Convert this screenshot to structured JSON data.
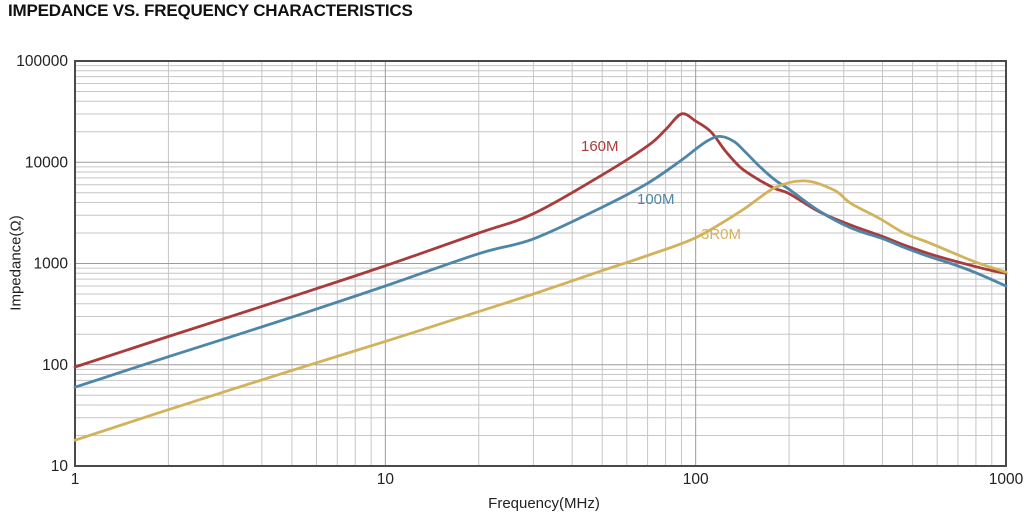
{
  "title": "IMPEDANCE VS. FREQUENCY CHARACTERISTICS",
  "chart_data": {
    "type": "line",
    "title": "IMPEDANCE VS. FREQUENCY CHARACTERISTICS",
    "xlabel": "Frequency(MHz)",
    "ylabel": "Impedance(Ω)",
    "x_scale": "log",
    "y_scale": "log",
    "xlim": [
      1,
      1000
    ],
    "ylim": [
      10,
      100000
    ],
    "grid": "log major and minor gridlines, on",
    "legend_position": "inline curve labels",
    "x_ticks": [
      {
        "value": 1,
        "label": "1"
      },
      {
        "value": 10,
        "label": "10"
      },
      {
        "value": 100,
        "label": "100"
      },
      {
        "value": 1000,
        "label": "1000"
      }
    ],
    "y_ticks": [
      {
        "value": 100000,
        "label": "100000"
      },
      {
        "value": 10000,
        "label": "10000"
      },
      {
        "value": 1000,
        "label": "1000"
      },
      {
        "value": 100,
        "label": "100"
      },
      {
        "value": 10,
        "label": "10"
      }
    ],
    "series": [
      {
        "name": "160M",
        "color": "#A83C3C",
        "label": {
          "text": "160M",
          "x": 581,
          "y": 138
        },
        "peak": {
          "frequency_mhz": 90,
          "impedance_ohm": 30000
        },
        "points": [
          [
            1,
            95
          ],
          [
            2,
            190
          ],
          [
            5,
            470
          ],
          [
            10,
            950
          ],
          [
            20,
            2000
          ],
          [
            30,
            3100
          ],
          [
            50,
            7500
          ],
          [
            70,
            14500
          ],
          [
            80,
            21000
          ],
          [
            90,
            30000
          ],
          [
            100,
            25500
          ],
          [
            112,
            20000
          ],
          [
            125,
            12800
          ],
          [
            140,
            8800
          ],
          [
            160,
            6700
          ],
          [
            180,
            5500
          ],
          [
            200,
            4900
          ],
          [
            250,
            3250
          ],
          [
            316,
            2400
          ],
          [
            400,
            1850
          ],
          [
            470,
            1520
          ],
          [
            560,
            1260
          ],
          [
            665,
            1080
          ],
          [
            800,
            930
          ],
          [
            900,
            850
          ],
          [
            1000,
            800
          ]
        ]
      },
      {
        "name": "100M",
        "color": "#4D86A8",
        "label": {
          "text": "100M",
          "x": 637,
          "y": 191
        },
        "peak": {
          "frequency_mhz": 120,
          "impedance_ohm": 18000
        },
        "points": [
          [
            1,
            60
          ],
          [
            2,
            120
          ],
          [
            5,
            295
          ],
          [
            10,
            600
          ],
          [
            20,
            1250
          ],
          [
            30,
            1750
          ],
          [
            50,
            3600
          ],
          [
            70,
            6200
          ],
          [
            90,
            10500
          ],
          [
            100,
            13500
          ],
          [
            110,
            16500
          ],
          [
            120,
            18000
          ],
          [
            133,
            16000
          ],
          [
            145,
            12500
          ],
          [
            160,
            9200
          ],
          [
            180,
            6700
          ],
          [
            200,
            5400
          ],
          [
            250,
            3300
          ],
          [
            316,
            2250
          ],
          [
            400,
            1760
          ],
          [
            470,
            1440
          ],
          [
            560,
            1180
          ],
          [
            665,
            1000
          ],
          [
            800,
            810
          ],
          [
            1000,
            600
          ]
        ]
      },
      {
        "name": "3R0M",
        "color": "#D2B35C",
        "label": {
          "text": "3R0M",
          "x": 701,
          "y": 226
        },
        "peak": {
          "frequency_mhz": 225,
          "impedance_ohm": 6550
        },
        "points": [
          [
            1,
            18
          ],
          [
            2,
            36
          ],
          [
            5,
            88
          ],
          [
            10,
            170
          ],
          [
            20,
            335
          ],
          [
            30,
            500
          ],
          [
            50,
            850
          ],
          [
            70,
            1200
          ],
          [
            100,
            1800
          ],
          [
            140,
            3300
          ],
          [
            180,
            5600
          ],
          [
            225,
            6550
          ],
          [
            280,
            5280
          ],
          [
            316,
            3930
          ],
          [
            390,
            2800
          ],
          [
            469,
            2000
          ],
          [
            560,
            1620
          ],
          [
            665,
            1300
          ],
          [
            800,
            1030
          ],
          [
            1000,
            820
          ]
        ]
      }
    ],
    "style_colors": {
      "background": "#ffffff",
      "grid_minor": "#c6c6c6",
      "grid_major": "#9c9c9c",
      "frame": "#4a4a4a",
      "tick_text": "#222222",
      "title_text": "#111111"
    }
  }
}
